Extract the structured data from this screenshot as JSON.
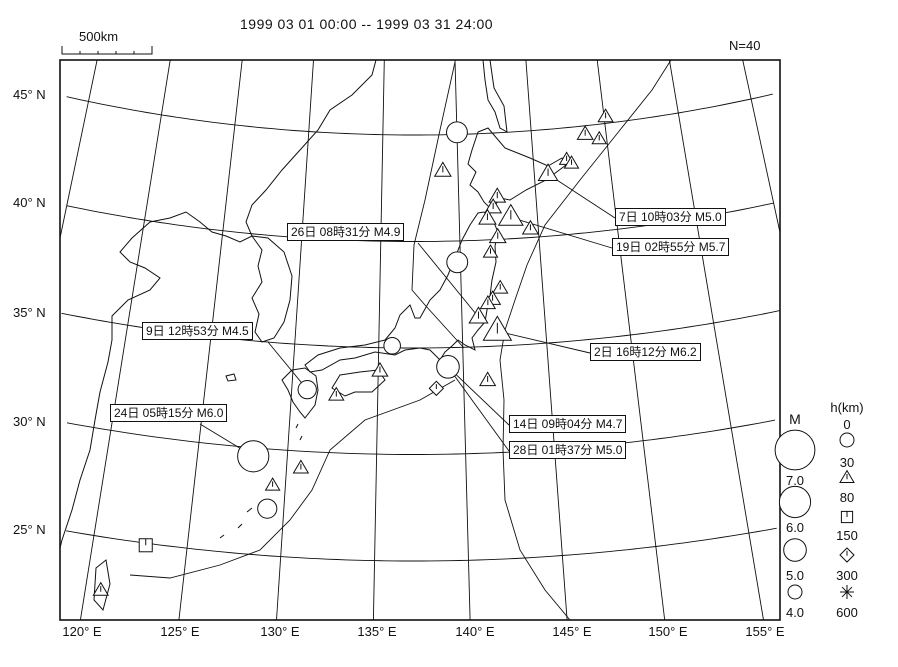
{
  "header": {
    "period": "1999 03 01 00:00 -- 1999 03 31 24:00",
    "count": "N=40",
    "scale_label": "500km"
  },
  "axes": {
    "lat_labels": [
      "45° N",
      "40° N",
      "35° N",
      "30° N",
      "25° N"
    ],
    "lon_labels": [
      "120° E",
      "125° E",
      "130° E",
      "135° E",
      "140° E",
      "145° E",
      "150° E",
      "155° E"
    ]
  },
  "legend": {
    "mag_title": "M",
    "mag_values": [
      "7.0",
      "6.0",
      "5.0",
      "4.0"
    ],
    "depth_title": "h(km)",
    "depth_values": [
      "0",
      "30",
      "80",
      "150",
      "300",
      "600"
    ],
    "depth_symbols": [
      "circle",
      "triangle",
      "square",
      "diamond",
      "asterisk"
    ]
  },
  "events": [
    {
      "lon": 140.0,
      "lat": 45.1,
      "mag": 4.8,
      "symbol": "circle"
    },
    {
      "lon": 139.0,
      "lat": 43.3,
      "mag": 4.6,
      "symbol": "triangle"
    },
    {
      "lon": 139.8,
      "lat": 39.0,
      "mag": 4.8,
      "symbol": "circle"
    },
    {
      "lon": 150.1,
      "lat": 45.3,
      "mag": 4.4,
      "symbol": "triangle"
    },
    {
      "lon": 148.6,
      "lat": 44.6,
      "mag": 4.5,
      "symbol": "triangle"
    },
    {
      "lon": 149.5,
      "lat": 44.3,
      "mag": 4.3,
      "symbol": "triangle"
    },
    {
      "lon": 147.2,
      "lat": 43.5,
      "mag": 4.3,
      "symbol": "triangle"
    },
    {
      "lon": 147.5,
      "lat": 43.3,
      "mag": 4.3,
      "symbol": "triangle"
    },
    {
      "lon": 145.9,
      "lat": 42.9,
      "mag": 5.0,
      "symbol": "triangle"
    },
    {
      "lon": 142.5,
      "lat": 42.0,
      "mag": 4.6,
      "symbol": "triangle"
    },
    {
      "lon": 142.2,
      "lat": 41.5,
      "mag": 4.6,
      "symbol": "triangle"
    },
    {
      "lon": 143.3,
      "lat": 41.0,
      "mag": 5.7,
      "symbol": "triangle"
    },
    {
      "lon": 141.8,
      "lat": 41.0,
      "mag": 4.7,
      "symbol": "triangle"
    },
    {
      "lon": 144.5,
      "lat": 40.4,
      "mag": 4.5,
      "symbol": "triangle"
    },
    {
      "lon": 142.4,
      "lat": 40.1,
      "mag": 4.6,
      "symbol": "triangle"
    },
    {
      "lon": 141.9,
      "lat": 39.4,
      "mag": 4.3,
      "symbol": "triangle"
    },
    {
      "lon": 142.4,
      "lat": 37.7,
      "mag": 4.4,
      "symbol": "triangle"
    },
    {
      "lon": 141.9,
      "lat": 37.2,
      "mag": 4.5,
      "symbol": "triangle"
    },
    {
      "lon": 141.6,
      "lat": 37.0,
      "mag": 4.4,
      "symbol": "triangle"
    },
    {
      "lon": 141.0,
      "lat": 36.4,
      "mag": 4.9,
      "symbol": "triangle"
    },
    {
      "lon": 142.1,
      "lat": 35.7,
      "mag": 6.2,
      "symbol": "triangle"
    },
    {
      "lon": 141.4,
      "lat": 33.4,
      "mag": 4.5,
      "symbol": "triangle"
    },
    {
      "lon": 139.1,
      "lat": 34.1,
      "mag": 4.7,
      "symbol": "circle"
    },
    {
      "lon": 139.1,
      "lat": 34.1,
      "mag": 5.0,
      "symbol": "circle"
    },
    {
      "lon": 138.4,
      "lat": 33.1,
      "mag": 4.3,
      "symbol": "diamond"
    },
    {
      "lon": 135.1,
      "lat": 33.9,
      "mag": 4.5,
      "symbol": "triangle"
    },
    {
      "lon": 135.8,
      "lat": 35.1,
      "mag": 4.3,
      "symbol": "circle"
    },
    {
      "lon": 132.6,
      "lat": 32.7,
      "mag": 4.4,
      "symbol": "triangle"
    },
    {
      "lon": 130.9,
      "lat": 32.9,
      "mag": 4.5,
      "symbol": "circle"
    },
    {
      "lon": 128.1,
      "lat": 29.6,
      "mag": 6.0,
      "symbol": "circle"
    },
    {
      "lon": 130.8,
      "lat": 29.2,
      "mag": 4.4,
      "symbol": "triangle"
    },
    {
      "lon": 129.3,
      "lat": 28.3,
      "mag": 4.3,
      "symbol": "triangle"
    },
    {
      "lon": 129.1,
      "lat": 27.2,
      "mag": 4.6,
      "symbol": "circle"
    },
    {
      "lon": 122.8,
      "lat": 24.9,
      "mag": 4.6,
      "symbol": "square"
    },
    {
      "lon": 120.8,
      "lat": 22.5,
      "mag": 4.4,
      "symbol": "triangle"
    }
  ],
  "labels": [
    {
      "text": "7日 10時03分 M5.0",
      "event": 8
    },
    {
      "text": "19日 02時55分 M5.7",
      "event": 11
    },
    {
      "text": "26日 08時31分 M4.9",
      "event": 19
    },
    {
      "text": "9日 12時53分 M4.5",
      "event": 28
    },
    {
      "text": "2日 16時12分 M6.2",
      "event": 20
    },
    {
      "text": "24日 05時15分 M6.0",
      "event": 29
    },
    {
      "text": "14日 09時04分 M4.7",
      "event": 22
    },
    {
      "text": "28日 01時37分 M5.0",
      "event": 23
    }
  ],
  "colors": {
    "ink": "#111111",
    "background": "#ffffff"
  }
}
